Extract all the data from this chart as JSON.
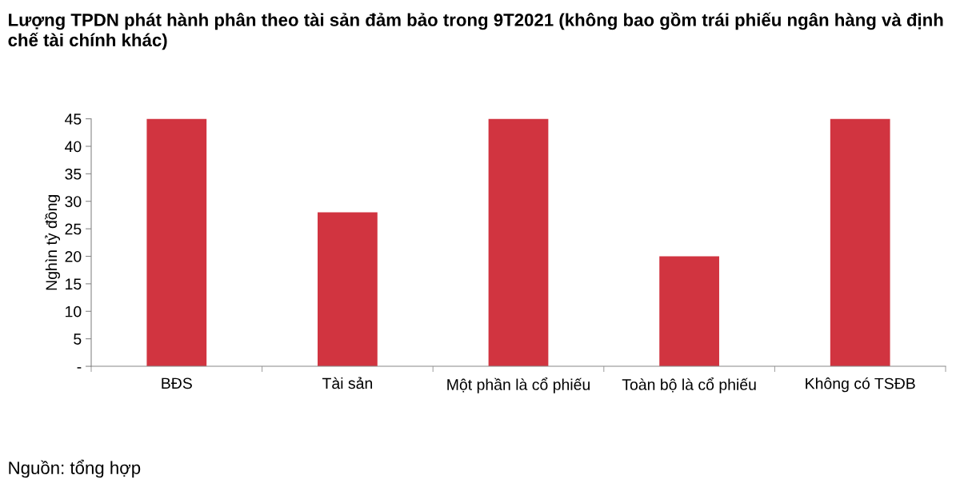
{
  "chart_data": {
    "type": "bar",
    "title": "Lượng TPDN phát hành phân theo tài sản đảm bảo trong 9T2021 (không bao gồm trái phiếu ngân hàng và định chế tài chính khác)",
    "ylabel": "Nghìn tỷ đồng",
    "categories": [
      "BĐS",
      "Tài sản",
      "Một phần là cổ phiếu",
      "Toàn bộ là cổ phiếu",
      "Không có TSĐB"
    ],
    "values": [
      45,
      28,
      45,
      20,
      45
    ],
    "color": "#d13440",
    "ylim": [
      0,
      45
    ],
    "yticks": [
      {
        "value": 0,
        "label": "-"
      },
      5,
      10,
      15,
      20,
      25,
      30,
      35,
      40,
      45
    ],
    "grid": false,
    "legend": false,
    "annotations": [
      "Nguồn: tổng hợp"
    ]
  }
}
